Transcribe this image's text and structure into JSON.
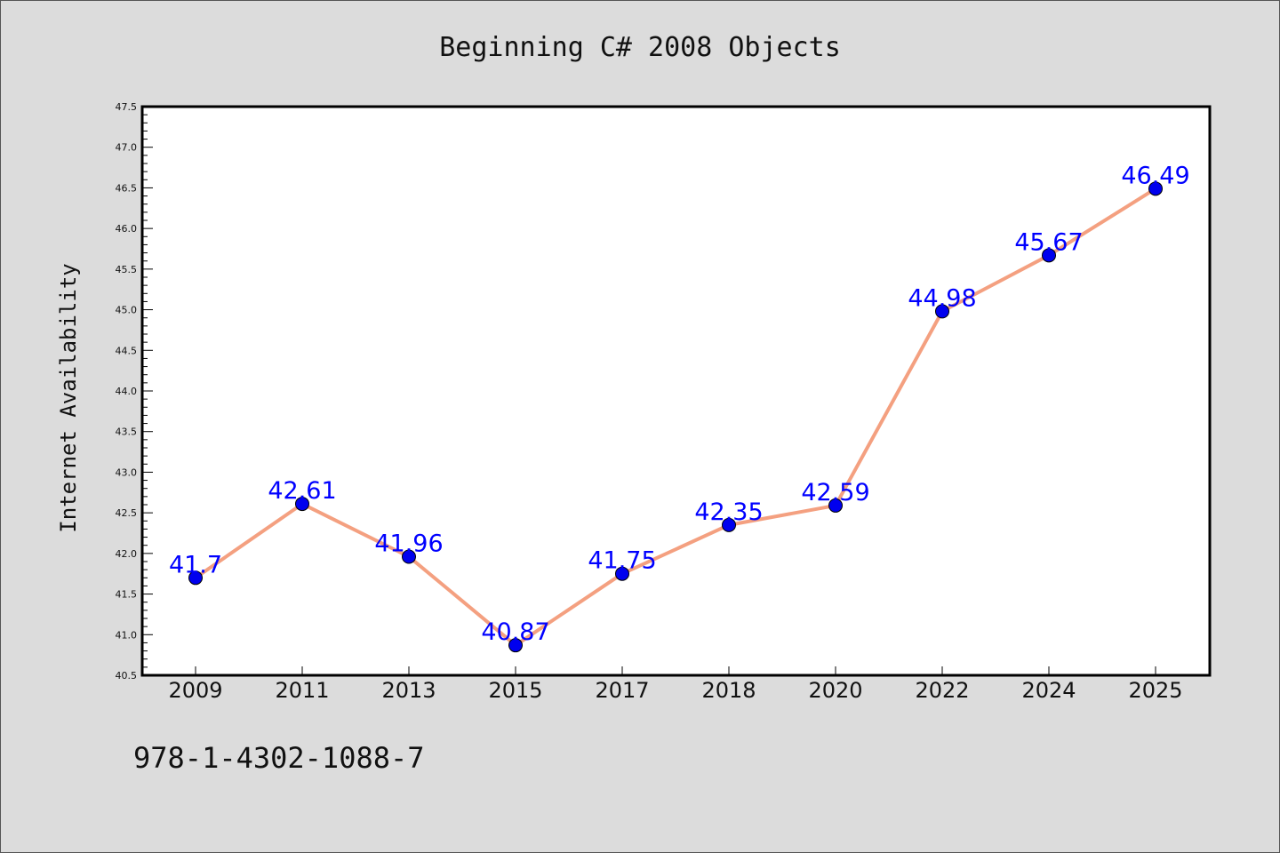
{
  "chart_data": {
    "type": "line",
    "title": "Beginning C# 2008 Objects",
    "xlabel": "",
    "ylabel": "Internet Availability",
    "categories": [
      "2009",
      "2011",
      "2013",
      "2015",
      "2017",
      "2018",
      "2020",
      "2022",
      "2024",
      "2025"
    ],
    "series": [
      {
        "values": [
          41.7,
          42.61,
          41.96,
          40.87,
          41.75,
          42.35,
          42.59,
          44.98,
          45.67,
          46.49
        ]
      }
    ],
    "data_labels": [
      "41.7",
      "42.61",
      "41.96",
      "40.87",
      "41.75",
      "42.35",
      "42.59",
      "44.98",
      "45.67",
      "46.49"
    ],
    "ylim": [
      40.5,
      47.5
    ],
    "yticks": [
      "40.5",
      "41.0",
      "41.5",
      "42.0",
      "42.5",
      "43.0",
      "43.5",
      "44.0",
      "44.5",
      "45.0",
      "45.5",
      "46.0",
      "46.5",
      "47.0",
      "47.5"
    ],
    "grid": false,
    "line_color": "#f4a080",
    "marker_color": "#0000ee",
    "label_color": "#0000ff"
  },
  "footer": {
    "isbn": "978-1-4302-1088-7"
  }
}
